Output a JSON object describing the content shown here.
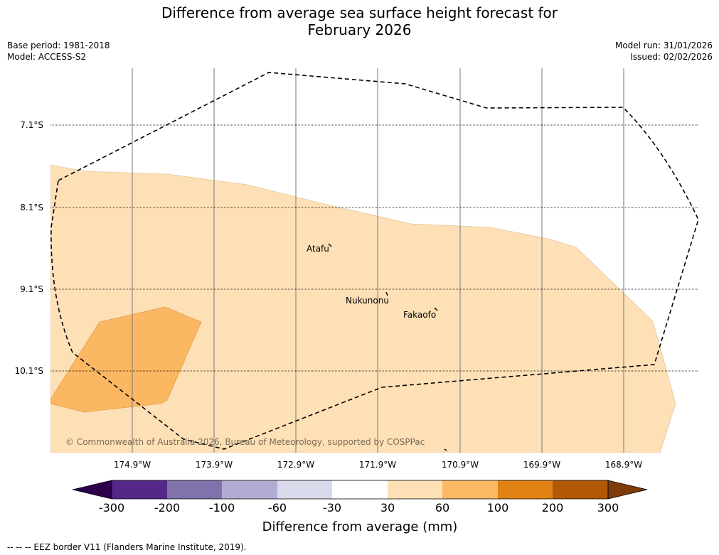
{
  "title": {
    "line1": "Difference from average sea surface height forecast for",
    "line2": "February 2026"
  },
  "meta": {
    "base_period": "Base period: 1981-2018",
    "model": "Model: ACCESS-S2",
    "model_run": "Model run: 31/01/2026",
    "issued": "Issued: 02/02/2026"
  },
  "map": {
    "lat_labels": [
      "7.1°S",
      "8.1°S",
      "9.1°S",
      "10.1°S"
    ],
    "lon_labels": [
      "174.9°W",
      "173.9°W",
      "172.9°W",
      "171.9°W",
      "170.9°W",
      "169.9°W",
      "168.9°W"
    ],
    "places": [
      {
        "name": "Atafu"
      },
      {
        "name": "Nukunonu"
      },
      {
        "name": "Fakaofo"
      }
    ],
    "copyright": "© Commonwealth of Australia 2026, Bureau of Meteorology, supported by COSPPac",
    "colors": {
      "zone_30_60": "#fde0b6",
      "zone_60_100": "#fbb761",
      "eez_border": "#000000"
    }
  },
  "colorbar": {
    "tick_labels": [
      "-300",
      "-200",
      "-100",
      "-60",
      "-30",
      "30",
      "60",
      "100",
      "200",
      "300"
    ],
    "colors": [
      "#2d004b",
      "#542788",
      "#8073ac",
      "#b2abd2",
      "#d8daeb",
      "#ffffff",
      "#fee0b6",
      "#fdb863",
      "#e08214",
      "#b35806",
      "#7f3b08"
    ],
    "label": "Difference from average (mm)"
  },
  "footer": {
    "legend": "--  --  -- EEZ border V11 (Flanders Marine Institute, 2019)."
  }
}
